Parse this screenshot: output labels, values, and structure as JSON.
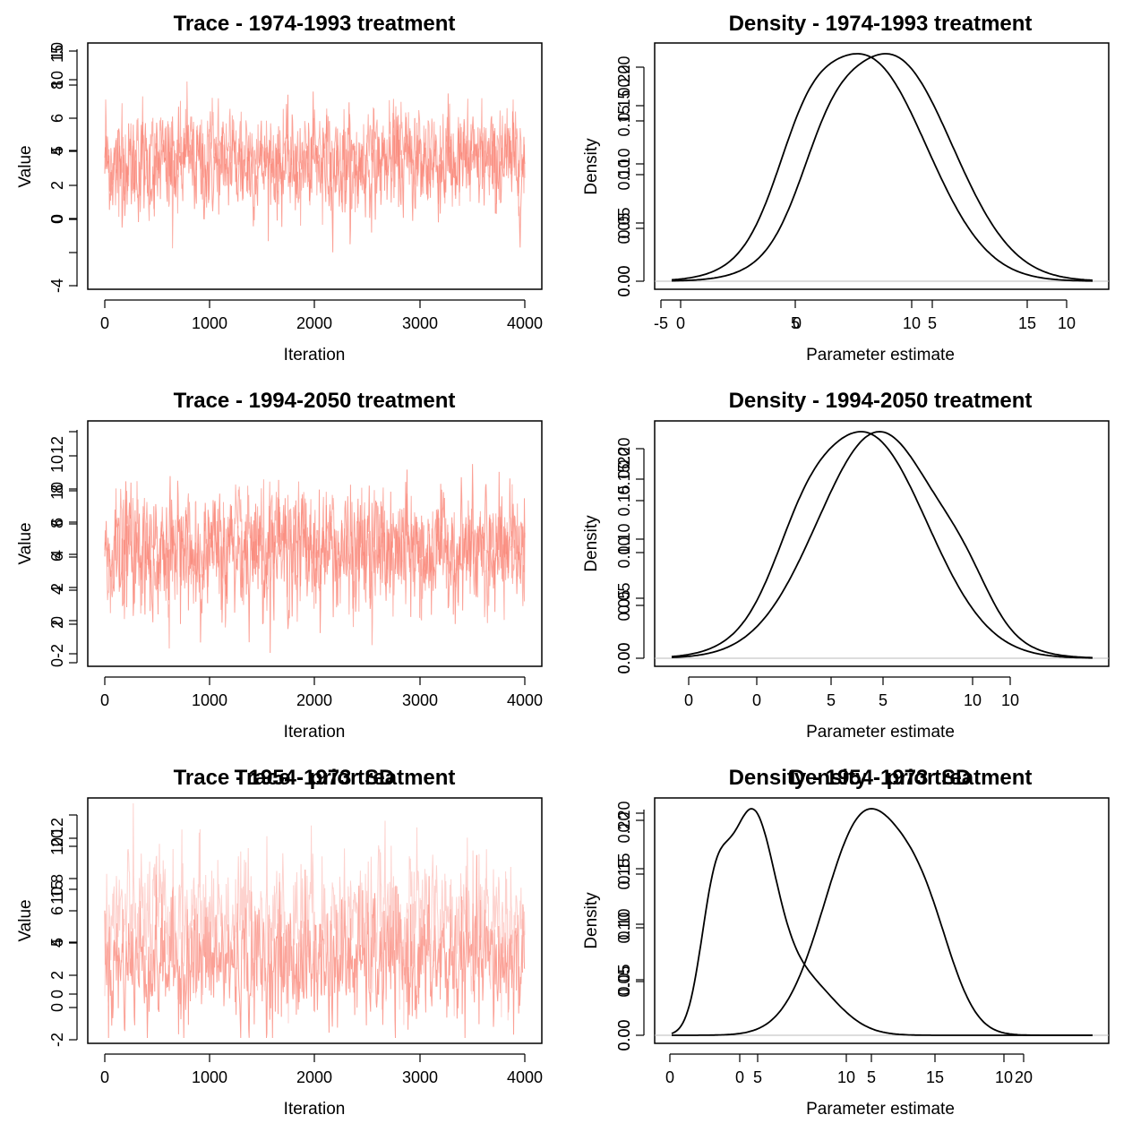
{
  "chart_data": [
    {
      "type": "line",
      "title": "Trace - 1974-1993 treatment",
      "xlabel": "Iteration",
      "ylabel": "Value",
      "xlim": [
        0,
        4000
      ],
      "x_ticks": [
        "0",
        "1000",
        "2000",
        "3000",
        "4000"
      ],
      "y_ticks_series_a": [
        "0",
        "2",
        "4",
        "6",
        "8",
        "10"
      ],
      "y_ticks_series_b": [
        "-4",
        "0",
        "5",
        "10",
        "15"
      ],
      "series": [
        {
          "mean": 3.0,
          "sd": 1.4,
          "color": "#FA8072"
        },
        {
          "mean": 3.6,
          "sd": 1.4,
          "color": "#FA8072"
        }
      ]
    },
    {
      "type": "line",
      "title": "Density - 1974-1993 treatment",
      "xlabel": "Parameter estimate",
      "ylabel": "Density",
      "x_ticks_series_a": [
        "-5",
        "0",
        "5",
        "10",
        "15"
      ],
      "x_ticks_series_b": [
        "0",
        "5",
        "10"
      ],
      "y_ticks_series_a": [
        "0.00",
        "0.05",
        "0.10",
        "0.15",
        "0.20"
      ],
      "y_ticks_series_b": [
        "0.00",
        "0.05",
        "0.10",
        "0.15",
        "0.20"
      ],
      "y_max": 0.21,
      "series": [
        {
          "mode": 2.5
        },
        {
          "mode": 3.3
        }
      ]
    },
    {
      "type": "line",
      "title": "Trace - 1994-2050 treatment",
      "xlabel": "Iteration",
      "ylabel": "Value",
      "xlim": [
        0,
        4000
      ],
      "x_ticks": [
        "0",
        "1000",
        "2000",
        "3000",
        "4000"
      ],
      "y_ticks_series_a": [
        "0",
        "2",
        "4",
        "6",
        "8",
        "10"
      ],
      "y_ticks_series_b": [
        "-2",
        "0",
        "2",
        "4",
        "6",
        "8",
        "10",
        "12"
      ],
      "series": [
        {
          "mean": 5.8,
          "sd": 1.7,
          "color": "#FA8072"
        },
        {
          "mean": 5.9,
          "sd": 1.7,
          "color": "#FA8072"
        }
      ]
    },
    {
      "type": "line",
      "title": "Density - 1994-2050 treatment",
      "xlabel": "Parameter estimate",
      "ylabel": "Density",
      "x_ticks_series_a": [
        "0",
        "5",
        "10"
      ],
      "x_ticks_series_b": [
        "0",
        "5",
        "10"
      ],
      "y_ticks_series_a": [
        "0.00",
        "0.05",
        "0.10",
        "0.15",
        "0.20"
      ],
      "y_ticks_series_b": [
        "0.00",
        "0.05",
        "0.10",
        "0.15",
        "0.20"
      ],
      "y_max": 0.22,
      "series": [
        {
          "mode": 4.2
        },
        {
          "mode": 4.6
        }
      ]
    },
    {
      "type": "line",
      "title": "Trace - 1954-1973 treatment",
      "title_overlay": "Trace - prior SD",
      "xlabel": "Iteration",
      "ylabel": "Value",
      "xlim": [
        0,
        4000
      ],
      "x_ticks": [
        "0",
        "1000",
        "2000",
        "3000",
        "4000"
      ],
      "y_ticks_series_a": [
        "0",
        "2",
        "4",
        "6",
        "8",
        "10",
        "12"
      ],
      "y_ticks_series_b": [
        "-2",
        "0",
        "5",
        "10",
        "15",
        "20"
      ],
      "series": [
        {
          "mean": 3.5,
          "sd": 2.2,
          "color": "#FA8072"
        },
        {
          "mean": 6.5,
          "sd": 2.5,
          "color": "#FBB4AE"
        }
      ]
    },
    {
      "type": "line",
      "title": "Density - 1954-1973 treatment",
      "title_overlay": "Density - prior SD",
      "xlabel": "Parameter estimate",
      "ylabel": "Density",
      "x_ticks_series_a": [
        "0",
        "5",
        "10",
        "15",
        "20"
      ],
      "x_ticks_series_b": [
        "0",
        "5",
        "10"
      ],
      "y_ticks_series_a": [
        "0.00",
        "0.05",
        "0.10",
        "0.15",
        "0.20"
      ],
      "y_ticks_series_b": [
        "0.00",
        "0.05",
        "0.10",
        "0.15",
        "0.20"
      ],
      "y_max": 0.21,
      "series": [
        {
          "mode": 3.0
        },
        {
          "mode": 9.5
        }
      ]
    }
  ]
}
